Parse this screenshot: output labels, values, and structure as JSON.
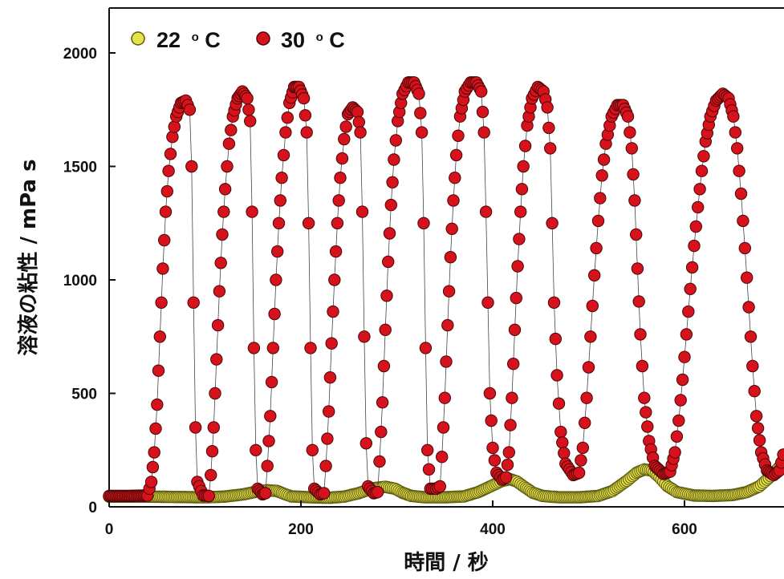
{
  "chart_data": {
    "type": "scatter",
    "xlabel": "時間 / 秒",
    "ylabel": "溶液の粘性 / mPa s",
    "xlim": [
      0,
      705
    ],
    "ylim": [
      0,
      2200
    ],
    "x_ticks": [
      "0",
      "200",
      "400",
      "600"
    ],
    "y_ticks": [
      "0",
      "500",
      "1000",
      "1500",
      "2000"
    ],
    "grid": false,
    "legend_position": "top-left",
    "series": [
      {
        "name": "22 °C",
        "name_parts": {
          "value": "22",
          "sup": "o",
          "unit": "C"
        },
        "color": "#e8e24a",
        "edge": "#5a5a10",
        "points": [
          [
            0,
            45
          ],
          [
            20,
            45
          ],
          [
            40,
            45
          ],
          [
            60,
            44
          ],
          [
            80,
            43
          ],
          [
            100,
            42
          ],
          [
            120,
            45
          ],
          [
            140,
            55
          ],
          [
            155,
            68
          ],
          [
            165,
            73
          ],
          [
            175,
            70
          ],
          [
            182,
            58
          ],
          [
            190,
            46
          ],
          [
            210,
            42
          ],
          [
            230,
            40
          ],
          [
            245,
            45
          ],
          [
            260,
            60
          ],
          [
            275,
            82
          ],
          [
            288,
            88
          ],
          [
            298,
            80
          ],
          [
            306,
            62
          ],
          [
            315,
            48
          ],
          [
            330,
            42
          ],
          [
            350,
            42
          ],
          [
            370,
            46
          ],
          [
            385,
            65
          ],
          [
            400,
            95
          ],
          [
            410,
            115
          ],
          [
            418,
            122
          ],
          [
            425,
            112
          ],
          [
            433,
            88
          ],
          [
            442,
            62
          ],
          [
            452,
            48
          ],
          [
            470,
            42
          ],
          [
            490,
            42
          ],
          [
            510,
            48
          ],
          [
            525,
            70
          ],
          [
            540,
            115
          ],
          [
            550,
            150
          ],
          [
            558,
            165
          ],
          [
            566,
            160
          ],
          [
            574,
            130
          ],
          [
            582,
            92
          ],
          [
            592,
            65
          ],
          [
            610,
            50
          ],
          [
            630,
            48
          ],
          [
            650,
            52
          ],
          [
            665,
            65
          ],
          [
            678,
            90
          ],
          [
            690,
            135
          ],
          [
            700,
            180
          ],
          [
            705,
            205
          ]
        ]
      },
      {
        "name": "30 °C",
        "name_parts": {
          "value": "30",
          "sup": "o",
          "unit": "C"
        },
        "color": "#d6121c",
        "edge": "#4a0606",
        "points": [
          [
            0,
            48
          ],
          [
            20,
            48
          ],
          [
            40,
            50
          ],
          [
            44,
            110
          ],
          [
            47,
            240
          ],
          [
            50,
            450
          ],
          [
            53,
            750
          ],
          [
            56,
            1050
          ],
          [
            59,
            1300
          ],
          [
            62,
            1480
          ],
          [
            66,
            1630
          ],
          [
            70,
            1720
          ],
          [
            75,
            1780
          ],
          [
            80,
            1790
          ],
          [
            84,
            1750
          ],
          [
            86,
            1500
          ],
          [
            88,
            900
          ],
          [
            90,
            350
          ],
          [
            92,
            110
          ],
          [
            98,
            50
          ],
          [
            104,
            48
          ],
          [
            106,
            140
          ],
          [
            109,
            350
          ],
          [
            112,
            650
          ],
          [
            115,
            950
          ],
          [
            118,
            1200
          ],
          [
            121,
            1400
          ],
          [
            125,
            1600
          ],
          [
            129,
            1720
          ],
          [
            134,
            1800
          ],
          [
            139,
            1830
          ],
          [
            144,
            1800
          ],
          [
            147,
            1700
          ],
          [
            149,
            1300
          ],
          [
            151,
            700
          ],
          [
            153,
            250
          ],
          [
            155,
            80
          ],
          [
            160,
            55
          ],
          [
            163,
            60
          ],
          [
            165,
            180
          ],
          [
            168,
            400
          ],
          [
            171,
            700
          ],
          [
            174,
            1000
          ],
          [
            177,
            1250
          ],
          [
            180,
            1450
          ],
          [
            184,
            1650
          ],
          [
            188,
            1780
          ],
          [
            193,
            1850
          ],
          [
            198,
            1850
          ],
          [
            203,
            1800
          ],
          [
            206,
            1650
          ],
          [
            208,
            1250
          ],
          [
            210,
            700
          ],
          [
            212,
            250
          ],
          [
            214,
            80
          ],
          [
            220,
            55
          ],
          [
            224,
            60
          ],
          [
            226,
            180
          ],
          [
            229,
            420
          ],
          [
            232,
            720
          ],
          [
            235,
            1000
          ],
          [
            238,
            1250
          ],
          [
            241,
            1450
          ],
          [
            245,
            1620
          ],
          [
            249,
            1730
          ],
          [
            254,
            1760
          ],
          [
            259,
            1740
          ],
          [
            262,
            1650
          ],
          [
            264,
            1300
          ],
          [
            266,
            750
          ],
          [
            268,
            280
          ],
          [
            270,
            90
          ],
          [
            276,
            60
          ],
          [
            280,
            65
          ],
          [
            282,
            200
          ],
          [
            285,
            460
          ],
          [
            288,
            780
          ],
          [
            291,
            1080
          ],
          [
            294,
            1330
          ],
          [
            297,
            1530
          ],
          [
            301,
            1700
          ],
          [
            306,
            1820
          ],
          [
            312,
            1870
          ],
          [
            318,
            1870
          ],
          [
            323,
            1820
          ],
          [
            326,
            1650
          ],
          [
            328,
            1250
          ],
          [
            330,
            700
          ],
          [
            332,
            250
          ],
          [
            335,
            80
          ],
          [
            341,
            80
          ],
          [
            345,
            90
          ],
          [
            347,
            220
          ],
          [
            350,
            480
          ],
          [
            353,
            800
          ],
          [
            356,
            1100
          ],
          [
            359,
            1350
          ],
          [
            362,
            1550
          ],
          [
            366,
            1720
          ],
          [
            371,
            1830
          ],
          [
            377,
            1870
          ],
          [
            383,
            1870
          ],
          [
            388,
            1830
          ],
          [
            391,
            1650
          ],
          [
            393,
            1300
          ],
          [
            395,
            900
          ],
          [
            397,
            500
          ],
          [
            400,
            260
          ],
          [
            404,
            150
          ],
          [
            410,
            120
          ],
          [
            414,
            130
          ],
          [
            417,
            240
          ],
          [
            420,
            480
          ],
          [
            423,
            780
          ],
          [
            426,
            1060
          ],
          [
            429,
            1300
          ],
          [
            432,
            1500
          ],
          [
            436,
            1680
          ],
          [
            441,
            1800
          ],
          [
            447,
            1850
          ],
          [
            453,
            1830
          ],
          [
            457,
            1760
          ],
          [
            460,
            1580
          ],
          [
            462,
            1250
          ],
          [
            464,
            900
          ],
          [
            467,
            580
          ],
          [
            471,
            330
          ],
          [
            476,
            190
          ],
          [
            484,
            140
          ],
          [
            490,
            150
          ],
          [
            494,
            260
          ],
          [
            498,
            480
          ],
          [
            502,
            750
          ],
          [
            506,
            1020
          ],
          [
            510,
            1260
          ],
          [
            514,
            1460
          ],
          [
            518,
            1600
          ],
          [
            524,
            1720
          ],
          [
            530,
            1770
          ],
          [
            536,
            1770
          ],
          [
            541,
            1720
          ],
          [
            545,
            1580
          ],
          [
            548,
            1350
          ],
          [
            551,
            1050
          ],
          [
            554,
            760
          ],
          [
            558,
            480
          ],
          [
            563,
            290
          ],
          [
            569,
            180
          ],
          [
            578,
            145
          ],
          [
            585,
            155
          ],
          [
            590,
            240
          ],
          [
            594,
            380
          ],
          [
            598,
            560
          ],
          [
            602,
            760
          ],
          [
            606,
            960
          ],
          [
            610,
            1150
          ],
          [
            614,
            1320
          ],
          [
            618,
            1480
          ],
          [
            622,
            1610
          ],
          [
            627,
            1720
          ],
          [
            633,
            1790
          ],
          [
            640,
            1820
          ],
          [
            646,
            1800
          ],
          [
            651,
            1720
          ],
          [
            655,
            1580
          ],
          [
            659,
            1380
          ],
          [
            663,
            1140
          ],
          [
            667,
            880
          ],
          [
            671,
            620
          ],
          [
            675,
            400
          ],
          [
            680,
            240
          ],
          [
            686,
            160
          ],
          [
            693,
            140
          ],
          [
            699,
            160
          ],
          [
            703,
            230
          ],
          [
            705,
            290
          ]
        ]
      }
    ]
  }
}
